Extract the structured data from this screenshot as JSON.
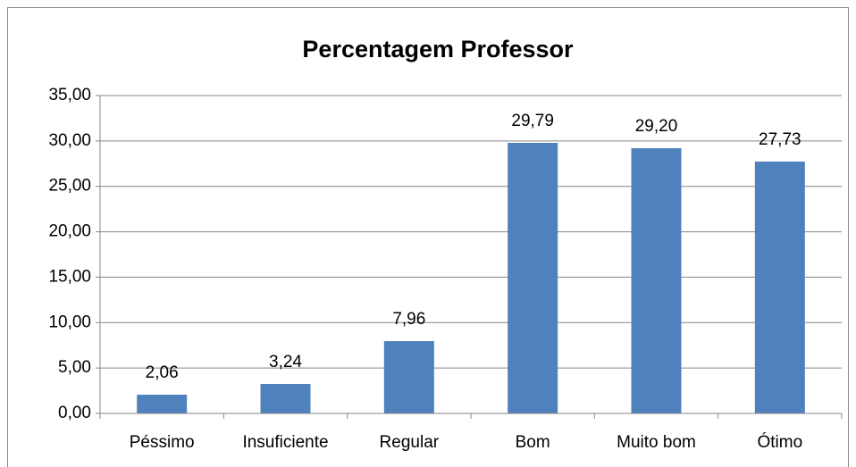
{
  "chart_data": {
    "type": "bar",
    "title": "Percentagem Professor",
    "categories": [
      "Péssimo",
      "Insuficiente",
      "Regular",
      "Bom",
      "Muito bom",
      "Ótimo"
    ],
    "values": [
      2.06,
      3.24,
      7.96,
      29.79,
      29.2,
      27.73
    ],
    "value_labels": [
      "2,06",
      "3,24",
      "7,96",
      "29,79",
      "29,20",
      "27,73"
    ],
    "color": "#4f81bd",
    "ylim": [
      0,
      35
    ],
    "yticks": [
      {
        "value": 0,
        "label": "0,00"
      },
      {
        "value": 5,
        "label": "5,00"
      },
      {
        "value": 10,
        "label": "10,00"
      },
      {
        "value": 15,
        "label": "15,00"
      },
      {
        "value": 20,
        "label": "20,00"
      },
      {
        "value": 25,
        "label": "25,00"
      },
      {
        "value": 30,
        "label": "30,00"
      },
      {
        "value": 35,
        "label": "35,00"
      }
    ],
    "grid": true
  }
}
